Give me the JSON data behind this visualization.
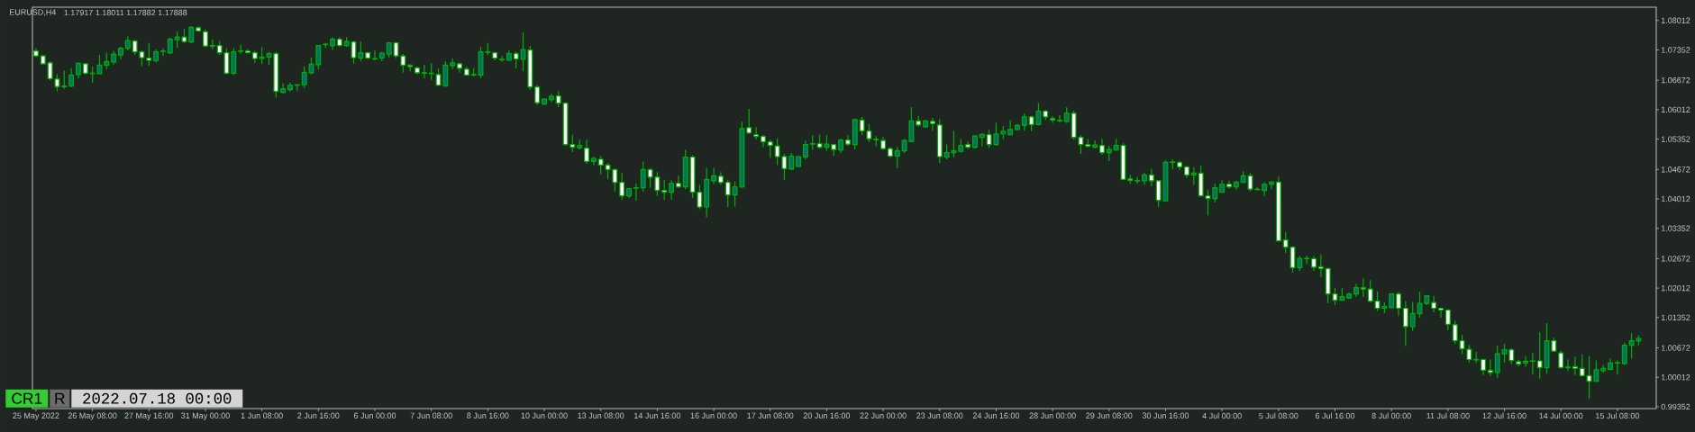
{
  "chart_data": {
    "type": "candlestick",
    "title": "EURUSD,H4",
    "subtitle": "1.17917 1.18011 1.17882 1.17888",
    "annotations": [
      "CR1",
      "R",
      "2022.07.18 00:00"
    ],
    "color": "#00b000",
    "ylim": [
      0.9931,
      1.0831
    ],
    "yticks": [
      0.99352,
      1.00012,
      1.00672,
      1.01352,
      1.02012,
      1.02672,
      1.03352,
      1.04012,
      1.04672,
      1.05352,
      1.06012,
      1.06672,
      1.07352,
      1.08012
    ],
    "categories": [
      "25 May 2022",
      null,
      null,
      null,
      null,
      null,
      null,
      null,
      "26 May 08:00",
      null,
      null,
      null,
      null,
      null,
      null,
      null,
      "27 May 16:00",
      null,
      null,
      null,
      null,
      null,
      null,
      null,
      "31 May 00:00",
      null,
      null,
      null,
      null,
      null,
      null,
      null,
      "1 Jun 08:00",
      null,
      null,
      null,
      null,
      null,
      null,
      null,
      "2 Jun 16:00",
      null,
      null,
      null,
      null,
      null,
      null,
      null,
      "6 Jun 00:00",
      null,
      null,
      null,
      null,
      null,
      null,
      null,
      "7 Jun 08:00",
      null,
      null,
      null,
      null,
      null,
      null,
      null,
      "8 Jun 16:00",
      null,
      null,
      null,
      null,
      null,
      null,
      null,
      "10 Jun 00:00",
      null,
      null,
      null,
      null,
      null,
      null,
      null,
      "13 Jun 08:00",
      null,
      null,
      null,
      null,
      null,
      null,
      null,
      "14 Jun 16:00",
      null,
      null,
      null,
      null,
      null,
      null,
      null,
      "16 Jun 00:00",
      null,
      null,
      null,
      null,
      null,
      null,
      null,
      "17 Jun 08:00",
      null,
      null,
      null,
      null,
      null,
      null,
      null,
      "20 Jun 16:00",
      null,
      null,
      null,
      null,
      null,
      null,
      null,
      "22 Jun 00:00",
      null,
      null,
      null,
      null,
      null,
      null,
      null,
      "23 Jun 08:00",
      null,
      null,
      null,
      null,
      null,
      null,
      null,
      "24 Jun 16:00",
      null,
      null,
      null,
      null,
      null,
      null,
      null,
      "28 Jun 00:00",
      null,
      null,
      null,
      null,
      null,
      null,
      null,
      "29 Jun 08:00",
      null,
      null,
      null,
      null,
      null,
      null,
      null,
      "30 Jun 16:00",
      null,
      null,
      null,
      null,
      null,
      null,
      null,
      "4 Jul 00:00",
      null,
      null,
      null,
      null,
      null,
      null,
      null,
      "5 Jul 08:00",
      null,
      null,
      null,
      null,
      null,
      null,
      null,
      "6 Jul 16:00",
      null,
      null,
      null,
      null,
      null,
      null,
      null,
      "8 Jul 00:00",
      null,
      null,
      null,
      null,
      null,
      null,
      null,
      "11 Jul 08:00",
      null,
      null,
      null,
      null,
      null,
      null,
      null,
      "12 Jul 16:00",
      null,
      null,
      null,
      null,
      null,
      null,
      null,
      "14 Jul 00:00",
      null,
      null,
      null,
      null,
      null,
      null,
      null,
      "15 Jul 08:00",
      null,
      null,
      null
    ],
    "ohlc": [
      [
        1.0733,
        1.0739,
        1.0719,
        1.0722
      ],
      [
        1.0722,
        1.0724,
        1.0702,
        1.0704
      ],
      [
        1.0706,
        1.071,
        1.0667,
        1.0671
      ],
      [
        1.067,
        1.0681,
        1.0642,
        1.0653
      ],
      [
        1.0654,
        1.0689,
        1.0648,
        1.0653
      ],
      [
        1.0654,
        1.0695,
        1.0652,
        1.0679
      ],
      [
        1.068,
        1.0707,
        1.0671,
        1.0705
      ],
      [
        1.0704,
        1.0706,
        1.068,
        1.0683
      ],
      [
        1.0683,
        1.0698,
        1.0662,
        1.0682
      ],
      [
        1.0682,
        1.0724,
        1.068,
        1.0701
      ],
      [
        1.0701,
        1.0729,
        1.0692,
        1.0709
      ],
      [
        1.0708,
        1.0733,
        1.0702,
        1.0726
      ],
      [
        1.0724,
        1.0742,
        1.0714,
        1.0739
      ],
      [
        1.0739,
        1.0766,
        1.0734,
        1.0756
      ],
      [
        1.0755,
        1.0758,
        1.0724,
        1.0731
      ],
      [
        1.0731,
        1.0734,
        1.0699,
        1.0718
      ],
      [
        1.0717,
        1.0751,
        1.07,
        1.0712
      ],
      [
        1.0711,
        1.0736,
        1.0707,
        1.0731
      ],
      [
        1.0732,
        1.0739,
        1.0722,
        1.0733
      ],
      [
        1.0729,
        1.0763,
        1.0726,
        1.0759
      ],
      [
        1.0758,
        1.0776,
        1.074,
        1.0764
      ],
      [
        1.0764,
        1.0782,
        1.0751,
        1.0754
      ],
      [
        1.0753,
        1.0788,
        1.0751,
        1.0786
      ],
      [
        1.0785,
        1.0788,
        1.0777,
        1.0778
      ],
      [
        1.0776,
        1.0781,
        1.0741,
        1.0744
      ],
      [
        1.0745,
        1.0759,
        1.0736,
        1.0744
      ],
      [
        1.0745,
        1.0755,
        1.0724,
        1.0729
      ],
      [
        1.0729,
        1.0739,
        1.068,
        1.0683
      ],
      [
        1.0683,
        1.0739,
        1.0679,
        1.0731
      ],
      [
        1.0732,
        1.0747,
        1.0726,
        1.0733
      ],
      [
        1.0733,
        1.0737,
        1.0728,
        1.0729
      ],
      [
        1.0729,
        1.0733,
        1.0706,
        1.0716
      ],
      [
        1.0716,
        1.0741,
        1.0704,
        1.0719
      ],
      [
        1.0719,
        1.0731,
        1.0702,
        1.0727
      ],
      [
        1.0727,
        1.0731,
        1.0628,
        1.0642
      ],
      [
        1.064,
        1.066,
        1.0638,
        1.0648
      ],
      [
        1.0646,
        1.0662,
        1.0642,
        1.0656
      ],
      [
        1.0656,
        1.0658,
        1.0644,
        1.0657
      ],
      [
        1.0657,
        1.0698,
        1.065,
        1.0685
      ],
      [
        1.0684,
        1.0718,
        1.068,
        1.0703
      ],
      [
        1.0702,
        1.0746,
        1.0692,
        1.0745
      ],
      [
        1.0747,
        1.0751,
        1.0739,
        1.0748
      ],
      [
        1.0745,
        1.0764,
        1.0735,
        1.0759
      ],
      [
        1.0759,
        1.0764,
        1.0742,
        1.0745
      ],
      [
        1.0745,
        1.0764,
        1.0742,
        1.0754
      ],
      [
        1.0753,
        1.0756,
        1.0704,
        1.0718
      ],
      [
        1.0717,
        1.0754,
        1.071,
        1.0729
      ],
      [
        1.0729,
        1.0731,
        1.0714,
        1.0717
      ],
      [
        1.0716,
        1.0734,
        1.0712,
        1.0715
      ],
      [
        1.0717,
        1.0731,
        1.071,
        1.0728
      ],
      [
        1.0726,
        1.0753,
        1.0718,
        1.0751
      ],
      [
        1.0751,
        1.0753,
        1.0717,
        1.0722
      ],
      [
        1.0722,
        1.0726,
        1.0684,
        1.0701
      ],
      [
        1.0701,
        1.0703,
        1.0687,
        1.0698
      ],
      [
        1.0695,
        1.0698,
        1.068,
        1.0684
      ],
      [
        1.0684,
        1.0702,
        1.0671,
        1.0683
      ],
      [
        1.0683,
        1.0706,
        1.0667,
        1.0682
      ],
      [
        1.068,
        1.0694,
        1.0655,
        1.0656
      ],
      [
        1.0655,
        1.071,
        1.0652,
        1.0701
      ],
      [
        1.07,
        1.0716,
        1.0692,
        1.0706
      ],
      [
        1.0704,
        1.0707,
        1.0684,
        1.0694
      ],
      [
        1.0692,
        1.0698,
        1.0677,
        1.0679
      ],
      [
        1.068,
        1.0695,
        1.0676,
        1.0679
      ],
      [
        1.0679,
        1.0742,
        1.0672,
        1.0731
      ],
      [
        1.073,
        1.0751,
        1.0724,
        1.0731
      ],
      [
        1.0729,
        1.0731,
        1.0712,
        1.0717
      ],
      [
        1.0714,
        1.0722,
        1.0709,
        1.0713
      ],
      [
        1.0712,
        1.0734,
        1.0711,
        1.0727
      ],
      [
        1.0727,
        1.0731,
        1.0694,
        1.0715
      ],
      [
        1.0714,
        1.0775,
        1.0688,
        1.0736
      ],
      [
        1.0735,
        1.0744,
        1.0646,
        1.0652
      ],
      [
        1.0652,
        1.0657,
        1.0612,
        1.0617
      ],
      [
        1.0614,
        1.0626,
        1.0612,
        1.0625
      ],
      [
        1.0624,
        1.0637,
        1.0618,
        1.0631
      ],
      [
        1.0632,
        1.0643,
        1.0607,
        1.0616
      ],
      [
        1.0616,
        1.0618,
        1.052,
        1.0523
      ],
      [
        1.0523,
        1.0545,
        1.0506,
        1.0517
      ],
      [
        1.0516,
        1.0534,
        1.0512,
        1.0521
      ],
      [
        1.0515,
        1.0534,
        1.048,
        1.0485
      ],
      [
        1.0485,
        1.0496,
        1.0477,
        1.0492
      ],
      [
        1.049,
        1.0497,
        1.0456,
        1.0477
      ],
      [
        1.0477,
        1.0482,
        1.0445,
        1.0467
      ],
      [
        1.0467,
        1.047,
        1.0418,
        1.0438
      ],
      [
        1.0438,
        1.0459,
        1.0399,
        1.0408
      ],
      [
        1.0408,
        1.0426,
        1.0403,
        1.0424
      ],
      [
        1.0425,
        1.0436,
        1.0397,
        1.0426
      ],
      [
        1.0426,
        1.0485,
        1.0418,
        1.0467
      ],
      [
        1.0467,
        1.047,
        1.0426,
        1.045
      ],
      [
        1.045,
        1.0461,
        1.0408,
        1.042
      ],
      [
        1.042,
        1.0444,
        1.0399,
        1.0416
      ],
      [
        1.0416,
        1.0443,
        1.0399,
        1.0436
      ],
      [
        1.0436,
        1.0453,
        1.0426,
        1.0428
      ],
      [
        1.0428,
        1.0511,
        1.0423,
        1.0495
      ],
      [
        1.0495,
        1.0499,
        1.0403,
        1.0416
      ],
      [
        1.0416,
        1.0433,
        1.0378,
        1.0383
      ],
      [
        1.0383,
        1.0471,
        1.036,
        1.0445
      ],
      [
        1.0442,
        1.0471,
        1.0435,
        1.0453
      ],
      [
        1.0452,
        1.0461,
        1.0433,
        1.0438
      ],
      [
        1.0438,
        1.0444,
        1.0383,
        1.041
      ],
      [
        1.041,
        1.044,
        1.0384,
        1.0428
      ],
      [
        1.0428,
        1.0574,
        1.0426,
        1.0559
      ],
      [
        1.0561,
        1.0603,
        1.0547,
        1.0549
      ],
      [
        1.0545,
        1.0562,
        1.0535,
        1.0541
      ],
      [
        1.0541,
        1.0545,
        1.0517,
        1.0529
      ],
      [
        1.0529,
        1.0534,
        1.0493,
        1.0521
      ],
      [
        1.052,
        1.0537,
        1.0477,
        1.0496
      ],
      [
        1.0496,
        1.0502,
        1.0444,
        1.0469
      ],
      [
        1.0468,
        1.0504,
        1.0467,
        1.0497
      ],
      [
        1.0474,
        1.0497,
        1.0473,
        1.0496
      ],
      [
        1.0495,
        1.0532,
        1.049,
        1.0523
      ],
      [
        1.0524,
        1.0544,
        1.0511,
        1.0525
      ],
      [
        1.0525,
        1.0546,
        1.0514,
        1.0517
      ],
      [
        1.0517,
        1.0544,
        1.0509,
        1.0524
      ],
      [
        1.0523,
        1.0525,
        1.0498,
        1.0512
      ],
      [
        1.0511,
        1.0536,
        1.0504,
        1.0533
      ],
      [
        1.0533,
        1.0544,
        1.052,
        1.0524
      ],
      [
        1.0523,
        1.0581,
        1.0512,
        1.0579
      ],
      [
        1.0578,
        1.0585,
        1.0544,
        1.0554
      ],
      [
        1.0553,
        1.0569,
        1.0529,
        1.0536
      ],
      [
        1.0535,
        1.0542,
        1.0519,
        1.0534
      ],
      [
        1.0532,
        1.054,
        1.0511,
        1.0514
      ],
      [
        1.0514,
        1.0517,
        1.0493,
        1.0497
      ],
      [
        1.0497,
        1.0517,
        1.047,
        1.0509
      ],
      [
        1.0509,
        1.0536,
        1.0504,
        1.0532
      ],
      [
        1.053,
        1.0607,
        1.0529,
        1.0576
      ],
      [
        1.0576,
        1.0587,
        1.0563,
        1.0567
      ],
      [
        1.0563,
        1.0578,
        1.0561,
        1.0576
      ],
      [
        1.0575,
        1.0583,
        1.0554,
        1.057
      ],
      [
        1.0567,
        1.058,
        1.0482,
        1.0496
      ],
      [
        1.0495,
        1.0524,
        1.049,
        1.0505
      ],
      [
        1.0505,
        1.0554,
        1.0494,
        1.0509
      ],
      [
        1.0508,
        1.0536,
        1.0505,
        1.0521
      ],
      [
        1.0523,
        1.053,
        1.0513,
        1.0517
      ],
      [
        1.0517,
        1.0544,
        1.0514,
        1.0542
      ],
      [
        1.0539,
        1.0548,
        1.0519,
        1.0546
      ],
      [
        1.0545,
        1.0556,
        1.0515,
        1.0523
      ],
      [
        1.0523,
        1.0572,
        1.0521,
        1.0547
      ],
      [
        1.0547,
        1.0564,
        1.0535,
        1.0553
      ],
      [
        1.0545,
        1.0578,
        1.0544,
        1.0557
      ],
      [
        1.0557,
        1.0569,
        1.0556,
        1.0566
      ],
      [
        1.0566,
        1.0593,
        1.0554,
        1.0585
      ],
      [
        1.0585,
        1.0588,
        1.0553,
        1.0568
      ],
      [
        1.0568,
        1.0616,
        1.0566,
        1.0598
      ],
      [
        1.0598,
        1.0601,
        1.0578,
        1.0585
      ],
      [
        1.0581,
        1.0587,
        1.0571,
        1.0578
      ],
      [
        1.0577,
        1.0589,
        1.0573,
        1.0576
      ],
      [
        1.0575,
        1.0607,
        1.0571,
        1.0593
      ],
      [
        1.0593,
        1.0599,
        1.0534,
        1.0539
      ],
      [
        1.0539,
        1.0544,
        1.0502,
        1.0523
      ],
      [
        1.0523,
        1.0536,
        1.0517,
        1.0519
      ],
      [
        1.0517,
        1.0533,
        1.0514,
        1.0522
      ],
      [
        1.0521,
        1.0536,
        1.05,
        1.0505
      ],
      [
        1.0505,
        1.052,
        1.0486,
        1.0512
      ],
      [
        1.0511,
        1.0536,
        1.0509,
        1.0521
      ],
      [
        1.0521,
        1.0527,
        1.0443,
        1.0445
      ],
      [
        1.0446,
        1.0455,
        1.0435,
        1.0443
      ],
      [
        1.0441,
        1.045,
        1.0435,
        1.0442
      ],
      [
        1.0442,
        1.046,
        1.0433,
        1.0455
      ],
      [
        1.0455,
        1.0469,
        1.043,
        1.0442
      ],
      [
        1.0442,
        1.0443,
        1.0383,
        1.0398
      ],
      [
        1.0397,
        1.0487,
        1.0396,
        1.0483
      ],
      [
        1.0483,
        1.049,
        1.0468,
        1.0484
      ],
      [
        1.0483,
        1.0487,
        1.0466,
        1.0473
      ],
      [
        1.0473,
        1.0475,
        1.0448,
        1.0455
      ],
      [
        1.0455,
        1.0472,
        1.0433,
        1.0459
      ],
      [
        1.0459,
        1.0476,
        1.0406,
        1.0408
      ],
      [
        1.0408,
        1.0421,
        1.0364,
        1.0402
      ],
      [
        1.0402,
        1.0435,
        1.0393,
        1.0426
      ],
      [
        1.0416,
        1.0443,
        1.0415,
        1.0434
      ],
      [
        1.0434,
        1.0442,
        1.0424,
        1.0428
      ],
      [
        1.0428,
        1.0442,
        1.0422,
        1.0439
      ],
      [
        1.0438,
        1.0463,
        1.0436,
        1.0453
      ],
      [
        1.0453,
        1.0459,
        1.0418,
        1.0423
      ],
      [
        1.0423,
        1.0428,
        1.0421,
        1.0422
      ],
      [
        1.042,
        1.0438,
        1.0407,
        1.0434
      ],
      [
        1.0434,
        1.0441,
        1.0423,
        1.0439
      ],
      [
        1.0439,
        1.0451,
        1.0306,
        1.0307
      ],
      [
        1.0309,
        1.0327,
        1.028,
        1.0293
      ],
      [
        1.0293,
        1.0295,
        1.0236,
        1.0247
      ],
      [
        1.0247,
        1.0273,
        1.024,
        1.0268
      ],
      [
        1.0267,
        1.0274,
        1.0255,
        1.0268
      ],
      [
        1.0267,
        1.0273,
        1.024,
        1.0248
      ],
      [
        1.0249,
        1.0277,
        1.0226,
        1.0245
      ],
      [
        1.0245,
        1.0248,
        1.0167,
        1.0188
      ],
      [
        1.0188,
        1.0202,
        1.0163,
        1.0174
      ],
      [
        1.0174,
        1.0201,
        1.0173,
        1.0182
      ],
      [
        1.0179,
        1.0191,
        1.0177,
        1.0188
      ],
      [
        1.0188,
        1.0211,
        1.0181,
        1.0202
      ],
      [
        1.0202,
        1.0223,
        1.0181,
        1.0199
      ],
      [
        1.0199,
        1.0219,
        1.0169,
        1.0172
      ],
      [
        1.0172,
        1.0194,
        1.015,
        1.0156
      ],
      [
        1.0156,
        1.0169,
        1.0145,
        1.016
      ],
      [
        1.0157,
        1.0189,
        1.0156,
        1.0188
      ],
      [
        1.0188,
        1.0193,
        1.0139,
        1.0156
      ],
      [
        1.0156,
        1.0172,
        1.0071,
        1.0115
      ],
      [
        1.0115,
        1.017,
        1.0105,
        1.0144
      ],
      [
        1.0144,
        1.0193,
        1.0135,
        1.0167
      ],
      [
        1.0167,
        1.0185,
        1.0163,
        1.0184
      ],
      [
        1.0169,
        1.0184,
        1.0147,
        1.0156
      ],
      [
        1.0156,
        1.0157,
        1.0135,
        1.0152
      ],
      [
        1.0152,
        1.0154,
        1.0107,
        1.012
      ],
      [
        1.0119,
        1.0128,
        1.0076,
        1.0083
      ],
      [
        1.0083,
        1.0096,
        1.0053,
        1.0065
      ],
      [
        1.0064,
        1.0074,
        1.0034,
        1.0041
      ],
      [
        1.0041,
        1.0058,
        1.0033,
        1.004
      ],
      [
        1.0041,
        1.0043,
        1.0006,
        1.0017
      ],
      [
        1.0017,
        1.0041,
        1.0004,
        1.0012
      ],
      [
        1.0012,
        1.0072,
        1.0,
        1.0054
      ],
      [
        1.0054,
        1.0076,
        1.0034,
        1.0063
      ],
      [
        1.0063,
        1.0066,
        1.0031,
        1.0039
      ],
      [
        1.0036,
        1.0041,
        1.0026,
        1.0031
      ],
      [
        1.0033,
        1.0049,
        1.0025,
        1.0037
      ],
      [
        1.0038,
        1.0056,
        1.0007,
        1.0037
      ],
      [
        1.0038,
        1.0102,
        0.9998,
        1.0023
      ],
      [
        1.0023,
        1.0123,
        1.0009,
        1.0083
      ],
      [
        1.0083,
        1.009,
        1.0058,
        1.006
      ],
      [
        1.0056,
        1.0061,
        1.0021,
        1.0023
      ],
      [
        1.0024,
        1.0041,
        1.0015,
        1.0023
      ],
      [
        1.0025,
        1.0047,
        1.0006,
        1.0021
      ],
      [
        1.0021,
        1.0052,
        1.0002,
        1.0005
      ],
      [
        1.0005,
        1.0049,
        0.9953,
        0.9992
      ],
      [
        0.9992,
        1.0039,
        0.9991,
        1.0018
      ],
      [
        1.0016,
        1.0029,
        1.0011,
        1.0021
      ],
      [
        1.0019,
        1.0043,
        1.0018,
        1.0033
      ],
      [
        1.0033,
        1.0039,
        1.0007,
        1.0034
      ],
      [
        1.0032,
        1.0079,
        1.0029,
        1.0073
      ],
      [
        1.0073,
        1.01,
        1.0043,
        1.0083
      ],
      [
        1.0083,
        1.0095,
        1.0073,
        1.0088
      ]
    ]
  }
}
